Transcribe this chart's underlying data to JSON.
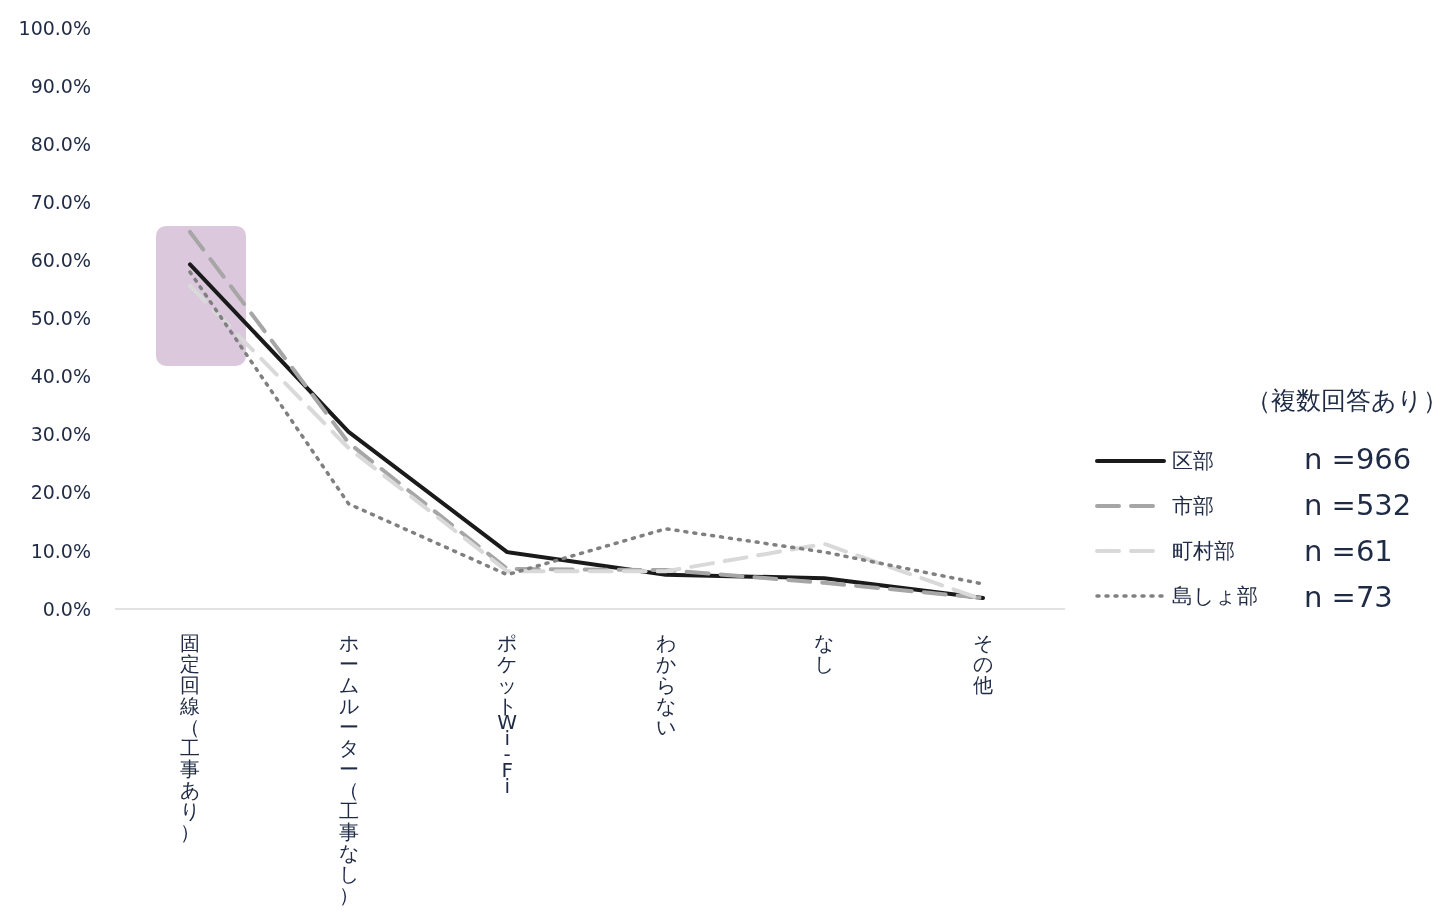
{
  "chart_data": {
    "type": "line",
    "categories": [
      "固定回線（工事あり）",
      "ホームルーター（工事なし）",
      "ポケットWi-Fi",
      "わからない",
      "なし",
      "その他"
    ],
    "series": [
      {
        "name": "区部",
        "color": "#1a1a1a",
        "line_style": "solid",
        "values": [
          59.3,
          30.5,
          9.8,
          5.9,
          5.3,
          1.9
        ]
      },
      {
        "name": "市部",
        "color": "#a6a6a6",
        "line_style": "dashed",
        "values": [
          64.9,
          28.6,
          6.9,
          6.7,
          4.5,
          1.9
        ]
      },
      {
        "name": "町村部",
        "color": "#d9d9d9",
        "line_style": "dashed",
        "values": [
          55.6,
          27.7,
          6.5,
          6.5,
          11.2,
          1.6
        ]
      },
      {
        "name": "島しょ部",
        "color": "#808080",
        "line_style": "dotted",
        "values": [
          58.0,
          18.1,
          5.9,
          13.8,
          9.8,
          4.3
        ]
      }
    ],
    "ylim": [
      0,
      100
    ],
    "yticks": [
      {
        "value": 0,
        "label": "0.0%"
      },
      {
        "value": 10,
        "label": "10.0%"
      },
      {
        "value": 20,
        "label": "20.0%"
      },
      {
        "value": 30,
        "label": "30.0%"
      },
      {
        "value": 40,
        "label": "40.0%"
      },
      {
        "value": 50,
        "label": "50.0%"
      },
      {
        "value": 60,
        "label": "60.0%"
      },
      {
        "value": 70,
        "label": "70.0%"
      },
      {
        "value": 80,
        "label": "80.0%"
      },
      {
        "value": 90,
        "label": "90.0%"
      },
      {
        "value": 100,
        "label": "100.0%"
      }
    ],
    "grid": false,
    "legend": "right",
    "annotations": [
      "（複数回答あり）",
      "n =966",
      "n =532",
      "n =61",
      "n =73"
    ]
  }
}
